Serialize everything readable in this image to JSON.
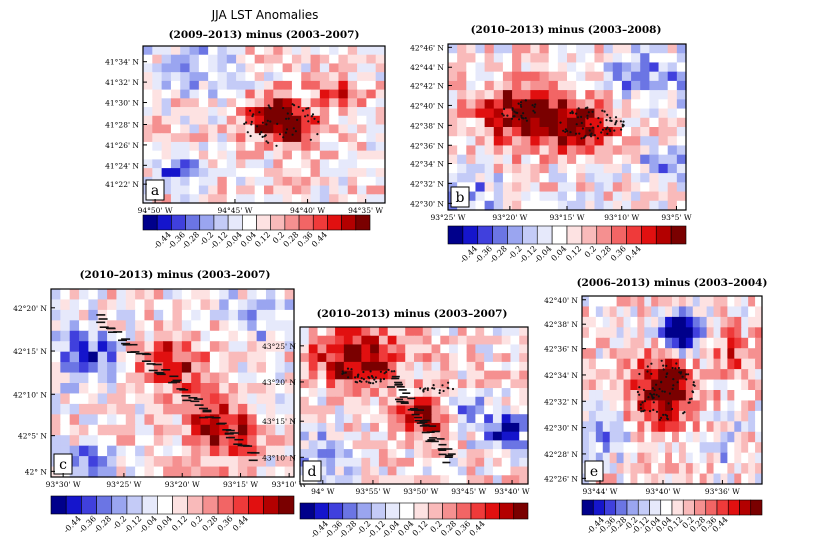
{
  "figure_title": "JJA LST Anomalies",
  "colorbar": {
    "tick_labels": [
      "-0.44",
      "-0.36",
      "-0.28",
      "-0.2",
      "-0.12",
      "-0.04",
      "0.04",
      "0.12",
      "0.2",
      "0.28",
      "0.36",
      "0.44"
    ],
    "colors": [
      "#00008b",
      "#1515cc",
      "#4040dd",
      "#6b75e4",
      "#9aa5f0",
      "#c4cbf7",
      "#e6e9fb",
      "#ffffff",
      "#fde2e2",
      "#f9baba",
      "#f59090",
      "#f26565",
      "#ef3a3a",
      "#e11010",
      "#b30000",
      "#7a0000"
    ]
  },
  "chart_data": [
    {
      "type": "heatmap",
      "panel_label": "a",
      "title": "(2009–2013) minus (2003–2007)",
      "x_tick_labels": [
        "94°50' W",
        "94°45' W",
        "94°40' W",
        "94°35' W"
      ],
      "y_tick_labels": [
        "41°34' N",
        "41°32' N",
        "41°30' N",
        "41°28' N",
        "41°26' N",
        "41°24' N",
        "41°22' N"
      ],
      "value_range": [
        -0.44,
        0.44
      ]
    },
    {
      "type": "heatmap",
      "panel_label": "b",
      "title": "(2010–2013) minus (2003–2008)",
      "x_tick_labels": [
        "93°25' W",
        "93°20' W",
        "93°15' W",
        "93°10' W",
        "93°5' W"
      ],
      "y_tick_labels": [
        "42°46' N",
        "42°44' N",
        "42°42' N",
        "42°40' N",
        "42°38' N",
        "42°36' N",
        "42°34' N",
        "42°32' N",
        "42°30' N"
      ],
      "value_range": [
        -0.44,
        0.44
      ]
    },
    {
      "type": "heatmap",
      "panel_label": "c",
      "title": "(2010–2013) minus (2003–2007)",
      "x_tick_labels": [
        "93°30' W",
        "93°25' W",
        "93°20' W",
        "93°15' W",
        "93°10' W"
      ],
      "y_tick_labels": [
        "42°20' N",
        "42°15' N",
        "42°10' N",
        "42°5' N",
        "42° N"
      ],
      "value_range": [
        -0.44,
        0.44
      ]
    },
    {
      "type": "heatmap",
      "panel_label": "d",
      "title": "(2010–2013) minus (2003–2007)",
      "x_tick_labels": [
        "94° W",
        "93°55' W",
        "93°50' W",
        "93°45' W",
        "93°40' W"
      ],
      "y_tick_labels": [
        "43°25' N",
        "43°20' N",
        "43°15' N",
        "43°10' N"
      ],
      "value_range": [
        -0.44,
        0.44
      ]
    },
    {
      "type": "heatmap",
      "panel_label": "e",
      "title": "(2006–2013) minus (2003–2004)",
      "x_tick_labels": [
        "93°44' W",
        "93°40' W",
        "93°36' W"
      ],
      "y_tick_labels": [
        "42°40' N",
        "42°38' N",
        "42°36' N",
        "42°34' N",
        "42°32' N",
        "42°30' N",
        "42°28' N",
        "42°26' N"
      ],
      "value_range": [
        -0.44,
        0.44
      ]
    }
  ]
}
